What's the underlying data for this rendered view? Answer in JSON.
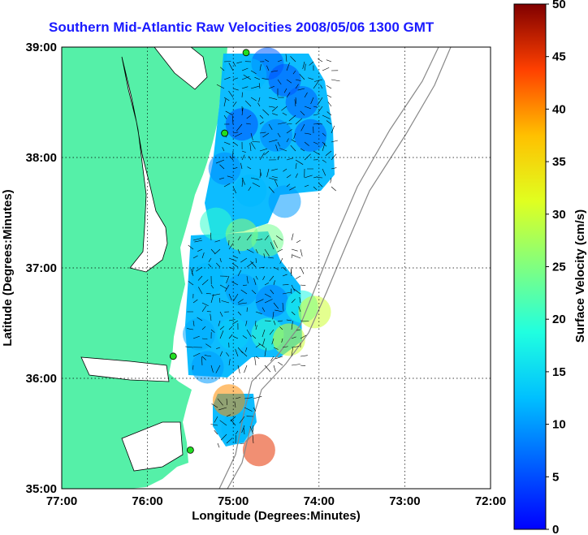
{
  "chart_data": {
    "type": "heatmap",
    "title": "Southern Mid-Atlantic Raw Velocities 2008/05/06 1300 GMT",
    "xlabel": "Longitude (Degrees:Minutes)",
    "ylabel": "Latitude (Degrees:Minutes)",
    "colorbar_label": "Surface Velocity (cm/s)",
    "x_ticks": [
      "77:00",
      "76:00",
      "75:00",
      "74:00",
      "73:00",
      "72:00"
    ],
    "y_ticks": [
      "39:00",
      "38:00",
      "37:00",
      "36:00",
      "35:00"
    ],
    "colorbar_ticks": [
      "50",
      "45",
      "40",
      "35",
      "30",
      "25",
      "20",
      "15",
      "10",
      "5",
      "0"
    ],
    "xlim": [
      -77,
      -72
    ],
    "ylim": [
      35,
      39
    ],
    "clim": [
      0,
      50
    ],
    "grid": true,
    "colors": {
      "land": "#55f0a8",
      "grid": "#000000",
      "title": "#1a1aff",
      "isobath": "#888888"
    },
    "velocity_field": [
      {
        "lon": -74.6,
        "lat": 38.85,
        "v": 6
      },
      {
        "lon": -74.4,
        "lat": 38.7,
        "v": 5
      },
      {
        "lon": -74.8,
        "lat": 38.75,
        "v": 12
      },
      {
        "lon": -74.2,
        "lat": 38.5,
        "v": 6
      },
      {
        "lon": -74.9,
        "lat": 38.3,
        "v": 5
      },
      {
        "lon": -74.5,
        "lat": 38.2,
        "v": 8
      },
      {
        "lon": -74.1,
        "lat": 38.2,
        "v": 6
      },
      {
        "lon": -75.1,
        "lat": 37.9,
        "v": 9
      },
      {
        "lon": -74.8,
        "lat": 37.7,
        "v": 12
      },
      {
        "lon": -74.4,
        "lat": 37.6,
        "v": 10
      },
      {
        "lon": -75.2,
        "lat": 37.4,
        "v": 20
      },
      {
        "lon": -74.9,
        "lat": 37.3,
        "v": 26
      },
      {
        "lon": -74.6,
        "lat": 37.25,
        "v": 24
      },
      {
        "lon": -75.3,
        "lat": 36.9,
        "v": 12
      },
      {
        "lon": -74.9,
        "lat": 36.8,
        "v": 10
      },
      {
        "lon": -74.55,
        "lat": 36.7,
        "v": 8
      },
      {
        "lon": -74.2,
        "lat": 36.65,
        "v": 18
      },
      {
        "lon": -74.05,
        "lat": 36.6,
        "v": 30
      },
      {
        "lon": -75.4,
        "lat": 36.4,
        "v": 11
      },
      {
        "lon": -75.0,
        "lat": 36.4,
        "v": 14
      },
      {
        "lon": -74.6,
        "lat": 36.4,
        "v": 20
      },
      {
        "lon": -74.35,
        "lat": 36.35,
        "v": 30
      },
      {
        "lon": -75.3,
        "lat": 36.1,
        "v": 10
      },
      {
        "lon": -74.95,
        "lat": 35.55,
        "v": 12
      },
      {
        "lon": -75.05,
        "lat": 35.8,
        "v": 40
      },
      {
        "lon": -74.7,
        "lat": 35.35,
        "v": 45
      }
    ],
    "radar_sites": [
      {
        "lon": -74.85,
        "lat": 38.95
      },
      {
        "lon": -75.1,
        "lat": 38.22
      },
      {
        "lon": -75.7,
        "lat": 36.2
      },
      {
        "lon": -75.5,
        "lat": 35.35
      }
    ]
  }
}
